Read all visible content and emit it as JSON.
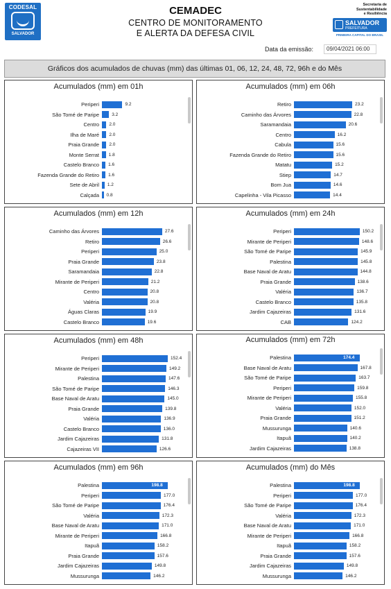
{
  "header": {
    "left_logo": {
      "name": "CODESAL",
      "sub": "SALVADOR"
    },
    "title": "CEMADEC",
    "subtitle_line1": "CENTRO DE MONITORAMENTO",
    "subtitle_line2": "E ALERTA DA DEFESA CIVIL",
    "right_logo": {
      "secretaria_l1": "Secretaria de",
      "secretaria_l2": "Sustentabilidade",
      "secretaria_l3": "e Resiliência",
      "name": "SALVADOR",
      "sub": "PREFEITURA",
      "tagline": "PRIMEIRA CAPITAL DO BRASIL"
    },
    "emission_label": "Data da emissão:",
    "emission_value": "09/04/2021 06:00"
  },
  "banner": "Gráficos dos acumulados de chuvas (mm) das últimas 01, 06, 12, 24, 48, 72, 96h e do Mês",
  "colors": {
    "bar": "#1f6fd4",
    "brand": "#1f6fc4"
  },
  "panels": [
    {
      "title": "Acumulados (mm) em 01h",
      "max": 30,
      "rows": [
        {
          "label": "Periperi",
          "value": 9.2
        },
        {
          "label": "São Tomé de Paripe",
          "value": 3.2
        },
        {
          "label": "Centro",
          "value": 2.0
        },
        {
          "label": "Ilha de Maré",
          "value": 2.0
        },
        {
          "label": "Praia Grande",
          "value": 2.0
        },
        {
          "label": "Monte Serrat",
          "value": 1.8
        },
        {
          "label": "Castelo Branco",
          "value": 1.6
        },
        {
          "label": "Fazenda Grande do Retiro",
          "value": 1.6
        },
        {
          "label": "Sete de Abril",
          "value": 1.2
        },
        {
          "label": "Calçada",
          "value": 0.8
        }
      ]
    },
    {
      "title": "Acumulados (mm) em 06h",
      "max": 26.5,
      "rows": [
        {
          "label": "Retiro",
          "value": 23.2
        },
        {
          "label": "Caminho das Árvores",
          "value": 22.8
        },
        {
          "label": "Saramandaia",
          "value": 20.6
        },
        {
          "label": "Centro",
          "value": 16.2
        },
        {
          "label": "Cabula",
          "value": 15.6
        },
        {
          "label": "Fazenda Grande do Retiro",
          "value": 15.6
        },
        {
          "label": "Matatu",
          "value": 15.2
        },
        {
          "label": "Stiep",
          "value": 14.7
        },
        {
          "label": "Bom Jua",
          "value": 14.6
        },
        {
          "label": "Capelinha - Vila Picasso",
          "value": 14.4
        }
      ]
    },
    {
      "title": "Acumulados (mm) em 12h",
      "max": 30.5,
      "rows": [
        {
          "label": "Caminho das Árvores",
          "value": 27.6
        },
        {
          "label": "Retiro",
          "value": 26.6
        },
        {
          "label": "Periperi",
          "value": 25.0
        },
        {
          "label": "Praia Grande",
          "value": 23.8
        },
        {
          "label": "Saramandaia",
          "value": 22.8
        },
        {
          "label": "Mirante de Periperi",
          "value": 21.2
        },
        {
          "label": "Centro",
          "value": 20.8
        },
        {
          "label": "Valéria",
          "value": 20.8
        },
        {
          "label": "Águas Claras",
          "value": 19.9
        },
        {
          "label": "Castelo Branco",
          "value": 19.6
        }
      ]
    },
    {
      "title": "Acumulados (mm) em 24h",
      "max": 152,
      "rows": [
        {
          "label": "Periperi",
          "value": 150.2
        },
        {
          "label": "Mirante de Periperi",
          "value": 148.6
        },
        {
          "label": "São Tomé de Paripe",
          "value": 145.9
        },
        {
          "label": "Palestina",
          "value": 145.8
        },
        {
          "label": "Base Naval de Aratu",
          "value": 144.8
        },
        {
          "label": "Praia Grande",
          "value": 138.6
        },
        {
          "label": "Valéria",
          "value": 136.7
        },
        {
          "label": "Castelo Branco",
          "value": 135.8
        },
        {
          "label": "Jardim Cajazeiras",
          "value": 131.6
        },
        {
          "label": "CAB",
          "value": 124.2
        }
      ]
    },
    {
      "title": "Acumulados (mm) em 48h",
      "max": 154,
      "rows": [
        {
          "label": "Periperi",
          "value": 152.4
        },
        {
          "label": "Mirante de Periperi",
          "value": 149.2
        },
        {
          "label": "Palestina",
          "value": 147.6
        },
        {
          "label": "São Tomé de Paripe",
          "value": 146.3
        },
        {
          "label": "Base Naval de Aratu",
          "value": 145.0
        },
        {
          "label": "Praia Grande",
          "value": 139.8
        },
        {
          "label": "Valéria",
          "value": 136.9
        },
        {
          "label": "Castelo Branco",
          "value": 136.0
        },
        {
          "label": "Jardim Cajazeiras",
          "value": 131.8
        },
        {
          "label": "Cajazeiras VII",
          "value": 126.6
        }
      ]
    },
    {
      "title": "Acumulados (mm) em 72h",
      "max": 176,
      "inbar_first": true,
      "rows": [
        {
          "label": "Palestina",
          "value": 174.4
        },
        {
          "label": "Base Naval de Aratu",
          "value": 167.8
        },
        {
          "label": "São Tomé de Paripe",
          "value": 163.7
        },
        {
          "label": "Periperi",
          "value": 159.8
        },
        {
          "label": "Mirante de Periperi",
          "value": 155.8
        },
        {
          "label": "Valéria",
          "value": 152.0
        },
        {
          "label": "Praia Grande",
          "value": 151.2
        },
        {
          "label": "Mussurunga",
          "value": 140.6
        },
        {
          "label": "Itapuã",
          "value": 140.2
        },
        {
          "label": "Jardim Cajazeiras",
          "value": 138.8
        }
      ]
    },
    {
      "title": "Acumulados (mm) em 96h",
      "max": 200,
      "inbar_first": true,
      "rows": [
        {
          "label": "Palestina",
          "value": 198.8
        },
        {
          "label": "Periperi",
          "value": 177.0
        },
        {
          "label": "São Tomé de Paripe",
          "value": 176.4
        },
        {
          "label": "Valéria",
          "value": 172.3
        },
        {
          "label": "Base Naval de Aratu",
          "value": 171.0
        },
        {
          "label": "Mirante de Periperi",
          "value": 166.8
        },
        {
          "label": "Itapuã",
          "value": 158.2
        },
        {
          "label": "Praia Grande",
          "value": 157.6
        },
        {
          "label": "Jardim Cajazeiras",
          "value": 149.8
        },
        {
          "label": "Mussurunga",
          "value": 146.2
        }
      ]
    },
    {
      "title": "Acumulados (mm) do Mês",
      "max": 200,
      "inbar_first": true,
      "rows": [
        {
          "label": "Palestina",
          "value": 198.8
        },
        {
          "label": "Periperi",
          "value": 177.0
        },
        {
          "label": "São Tomé de Paripe",
          "value": 176.4
        },
        {
          "label": "Valéria",
          "value": 172.3
        },
        {
          "label": "Base Naval de Aratu",
          "value": 171.0
        },
        {
          "label": "Mirante de Periperi",
          "value": 166.8
        },
        {
          "label": "Itapuã",
          "value": 158.2
        },
        {
          "label": "Praia Grande",
          "value": 157.6
        },
        {
          "label": "Jardim Cajazeiras",
          "value": 149.8
        },
        {
          "label": "Mussurunga",
          "value": 146.2
        }
      ]
    }
  ],
  "chart_data": [
    {
      "type": "bar",
      "title": "Acumulados (mm) em 01h",
      "categories": [
        "Periperi",
        "São Tomé de Paripe",
        "Centro",
        "Ilha de Maré",
        "Praia Grande",
        "Monte Serrat",
        "Castelo Branco",
        "Fazenda Grande do Retiro",
        "Sete de Abril",
        "Calçada"
      ],
      "values": [
        9.2,
        3.2,
        2.0,
        2.0,
        2.0,
        1.8,
        1.6,
        1.6,
        1.2,
        0.8
      ]
    },
    {
      "type": "bar",
      "title": "Acumulados (mm) em 06h",
      "categories": [
        "Retiro",
        "Caminho das Árvores",
        "Saramandaia",
        "Centro",
        "Cabula",
        "Fazenda Grande do Retiro",
        "Matatu",
        "Stiep",
        "Bom Jua",
        "Capelinha - Vila Picasso"
      ],
      "values": [
        23.2,
        22.8,
        20.6,
        16.2,
        15.6,
        15.6,
        15.2,
        14.7,
        14.6,
        14.4
      ]
    },
    {
      "type": "bar",
      "title": "Acumulados (mm) em 12h",
      "categories": [
        "Caminho das Árvores",
        "Retiro",
        "Periperi",
        "Praia Grande",
        "Saramandaia",
        "Mirante de Periperi",
        "Centro",
        "Valéria",
        "Águas Claras",
        "Castelo Branco"
      ],
      "values": [
        27.6,
        26.6,
        25.0,
        23.8,
        22.8,
        21.2,
        20.8,
        20.8,
        19.9,
        19.6
      ]
    },
    {
      "type": "bar",
      "title": "Acumulados (mm) em 24h",
      "categories": [
        "Periperi",
        "Mirante de Periperi",
        "São Tomé de Paripe",
        "Palestina",
        "Base Naval de Aratu",
        "Praia Grande",
        "Valéria",
        "Castelo Branco",
        "Jardim Cajazeiras",
        "CAB"
      ],
      "values": [
        150.2,
        148.6,
        145.9,
        145.8,
        144.8,
        138.6,
        136.7,
        135.8,
        131.6,
        124.2
      ]
    },
    {
      "type": "bar",
      "title": "Acumulados (mm) em 48h",
      "categories": [
        "Periperi",
        "Mirante de Periperi",
        "Palestina",
        "São Tomé de Paripe",
        "Base Naval de Aratu",
        "Praia Grande",
        "Valéria",
        "Castelo Branco",
        "Jardim Cajazeiras",
        "Cajazeiras VII"
      ],
      "values": [
        152.4,
        149.2,
        147.6,
        146.3,
        145.0,
        139.8,
        136.9,
        136.0,
        131.8,
        126.6
      ]
    },
    {
      "type": "bar",
      "title": "Acumulados (mm) em 72h",
      "categories": [
        "Palestina",
        "Base Naval de Aratu",
        "São Tomé de Paripe",
        "Periperi",
        "Mirante de Periperi",
        "Valéria",
        "Praia Grande",
        "Mussurunga",
        "Itapuã",
        "Jardim Cajazeiras"
      ],
      "values": [
        174.4,
        167.8,
        163.7,
        159.8,
        155.8,
        152.0,
        151.2,
        140.6,
        140.2,
        138.8
      ]
    },
    {
      "type": "bar",
      "title": "Acumulados (mm) em 96h",
      "categories": [
        "Palestina",
        "Periperi",
        "São Tomé de Paripe",
        "Valéria",
        "Base Naval de Aratu",
        "Mirante de Periperi",
        "Itapuã",
        "Praia Grande",
        "Jardim Cajazeiras",
        "Mussurunga"
      ],
      "values": [
        198.8,
        177.0,
        176.4,
        172.3,
        171.0,
        166.8,
        158.2,
        157.6,
        149.8,
        146.2
      ]
    },
    {
      "type": "bar",
      "title": "Acumulados (mm) do Mês",
      "categories": [
        "Palestina",
        "Periperi",
        "São Tomé de Paripe",
        "Valéria",
        "Base Naval de Aratu",
        "Mirante de Periperi",
        "Itapuã",
        "Praia Grande",
        "Jardim Cajazeiras",
        "Mussurunga"
      ],
      "values": [
        198.8,
        177.0,
        176.4,
        172.3,
        171.0,
        166.8,
        158.2,
        157.6,
        149.8,
        146.2
      ]
    }
  ]
}
